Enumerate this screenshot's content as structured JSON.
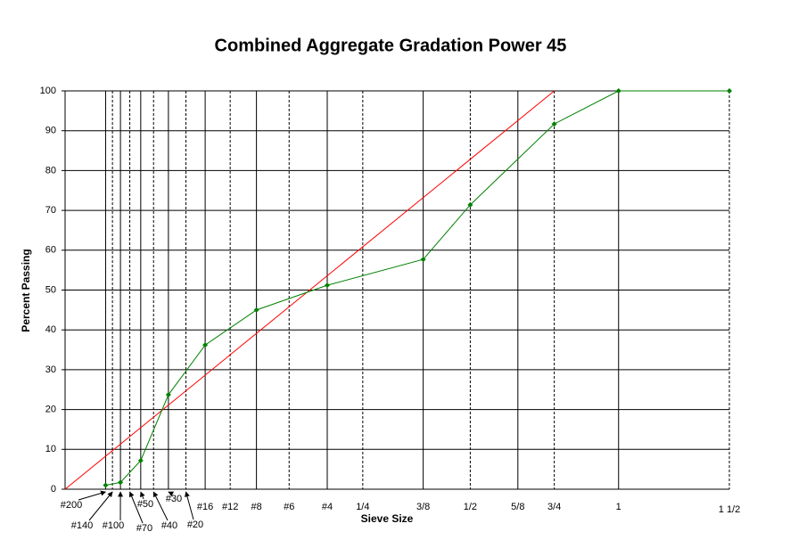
{
  "chart_data": {
    "type": "line",
    "title": "Combined Aggregate Gradation Power 45",
    "x_label": "Sieve Size",
    "y_label": "Percent Passing",
    "x_scale": "power",
    "x_power": 0.45,
    "xlim": [
      0,
      37.5
    ],
    "ylim": [
      0,
      100
    ],
    "xticks": [
      {
        "value": 0.075,
        "label": "#200"
      },
      {
        "value": 0.106,
        "label": "#140"
      },
      {
        "value": 0.15,
        "label": "#100"
      },
      {
        "value": 0.212,
        "label": "#70"
      },
      {
        "value": 0.3,
        "label": "#50"
      },
      {
        "value": 0.425,
        "label": "#40"
      },
      {
        "value": 0.6,
        "label": "#30"
      },
      {
        "value": 0.85,
        "label": "#20"
      },
      {
        "value": 1.18,
        "label": "#16"
      },
      {
        "value": 1.7,
        "label": "#12"
      },
      {
        "value": 2.36,
        "label": "#8"
      },
      {
        "value": 3.35,
        "label": "#6"
      },
      {
        "value": 4.75,
        "label": "#4"
      },
      {
        "value": 6.3,
        "label": "1/4"
      },
      {
        "value": 9.5,
        "label": "3/8"
      },
      {
        "value": 12.5,
        "label": "1/2"
      },
      {
        "value": 16,
        "label": "5/8"
      },
      {
        "value": 19,
        "label": "3/4"
      },
      {
        "value": 25,
        "label": "1"
      },
      {
        "value": 37.5,
        "label": "1 1/2"
      }
    ],
    "yticks": [
      0,
      10,
      20,
      30,
      40,
      50,
      60,
      70,
      80,
      90,
      100
    ],
    "grid": true,
    "series": [
      {
        "color": "#ff0000",
        "x": [
          0,
          19
        ],
        "values": [
          0,
          100
        ],
        "markers": false
      },
      {
        "color": "#008000",
        "x": [
          0.075,
          0.15,
          0.3,
          0.6,
          1.18,
          2.36,
          4.75,
          9.5,
          12.5,
          19,
          25,
          37.5
        ],
        "values": [
          1,
          1.7,
          7.2,
          23.7,
          36.2,
          45,
          51.2,
          57.7,
          71.4,
          91.7,
          100,
          100
        ],
        "markers": true
      }
    ]
  }
}
